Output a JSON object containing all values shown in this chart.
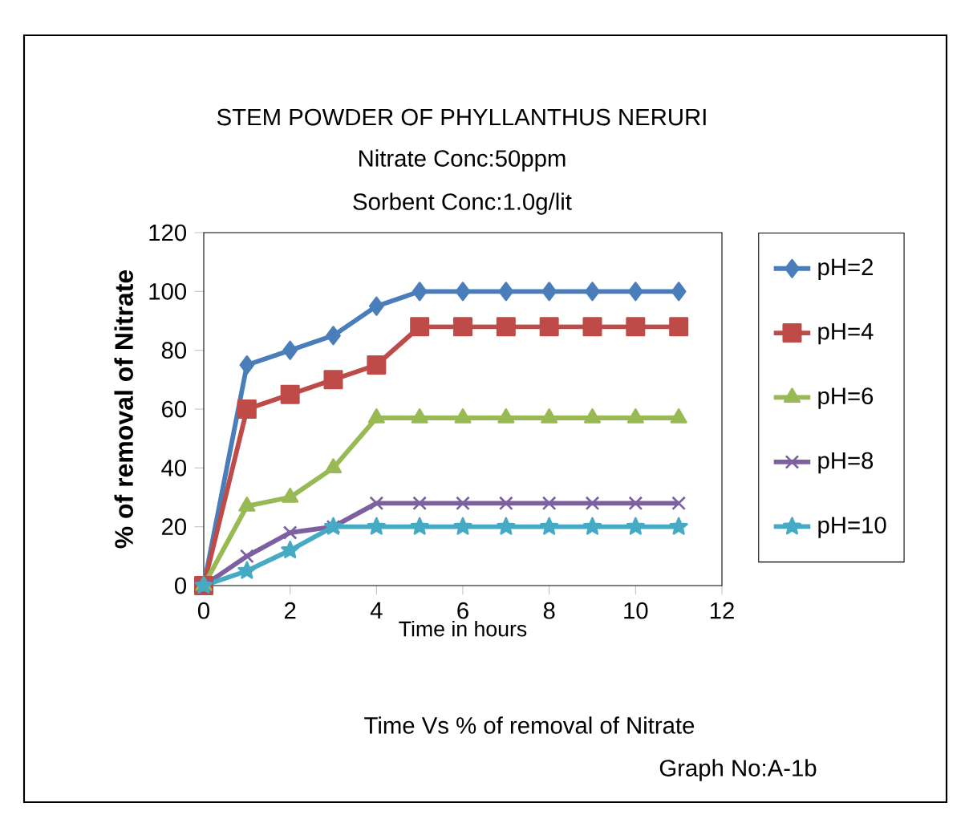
{
  "chart_data": {
    "type": "line",
    "title": "STEM POWDER OF PHYLLANTHUS NERURI",
    "subtitle": "Nitrate Conc:50ppm",
    "annotations": [
      "Sorbent Conc:1.0g/lit",
      "Time Vs % of removal of Nitrate",
      "Graph No:A-1b"
    ],
    "xlabel": "Time in hours",
    "ylabel": "% of removal of Nitrate",
    "x": [
      0,
      1,
      2,
      3,
      4,
      5,
      6,
      7,
      8,
      9,
      10,
      11
    ],
    "series": [
      {
        "name": "pH=2",
        "color": "#4a7ebb",
        "marker": "diamond",
        "values": [
          0,
          75,
          80,
          85,
          95,
          100,
          100,
          100,
          100,
          100,
          100,
          100
        ]
      },
      {
        "name": "pH=4",
        "color": "#be4b48",
        "marker": "square",
        "values": [
          0,
          60,
          65,
          70,
          75,
          88,
          88,
          88,
          88,
          88,
          88,
          88
        ]
      },
      {
        "name": "pH=6",
        "color": "#98b954",
        "marker": "triangle",
        "values": [
          0,
          27,
          30,
          40,
          57,
          57,
          57,
          57,
          57,
          57,
          57,
          57
        ]
      },
      {
        "name": "pH=8",
        "color": "#7d60a0",
        "marker": "cross",
        "values": [
          0,
          10,
          18,
          20,
          28,
          28,
          28,
          28,
          28,
          28,
          28,
          28
        ]
      },
      {
        "name": "pH=10",
        "color": "#46aac5",
        "marker": "star",
        "values": [
          0,
          5,
          12,
          20,
          20,
          20,
          20,
          20,
          20,
          20,
          20,
          20
        ]
      }
    ],
    "xlim": [
      0,
      12
    ],
    "ylim": [
      0,
      120
    ],
    "xticks": [
      0,
      2,
      4,
      6,
      8,
      10,
      12
    ],
    "yticks": [
      0,
      20,
      40,
      60,
      80,
      100,
      120
    ],
    "grid": false,
    "legend": "right",
    "line_style": "solid"
  }
}
